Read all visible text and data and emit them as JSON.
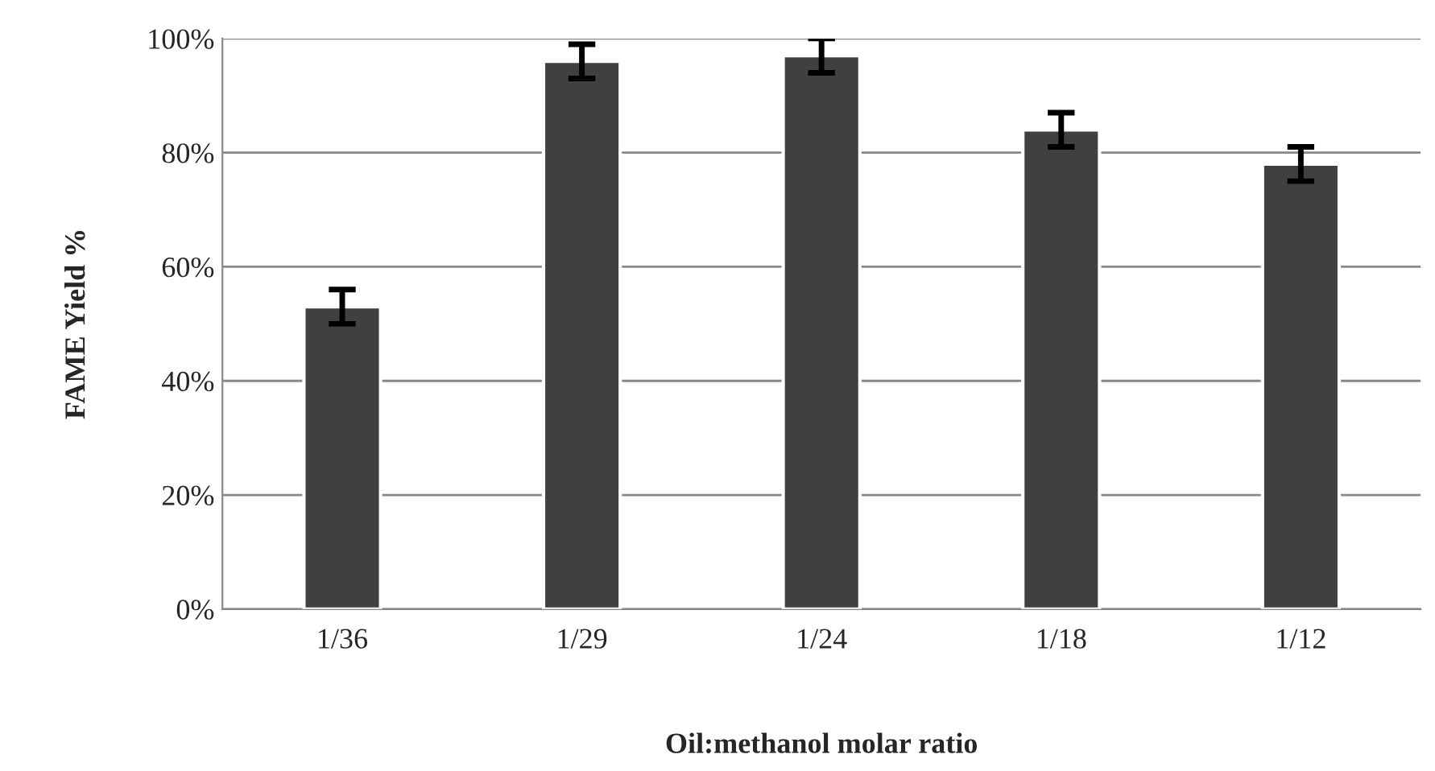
{
  "chart_data": {
    "type": "bar",
    "xlabel": "Oil:methanol molar ratio",
    "ylabel": "FAME Yield %",
    "categories": [
      "1/36",
      "1/29",
      "1/24",
      "1/18",
      "1/12"
    ],
    "values": [
      53,
      96,
      97,
      84,
      78
    ],
    "errors": [
      3,
      3,
      3,
      3,
      3
    ],
    "color": "#404040",
    "ylim": [
      0,
      100
    ],
    "yticks": [
      {
        "value": 0,
        "label": "0%"
      },
      {
        "value": 20,
        "label": "20%"
      },
      {
        "value": 40,
        "label": "40%"
      },
      {
        "value": 60,
        "label": "60%"
      },
      {
        "value": 80,
        "label": "80%"
      },
      {
        "value": 100,
        "label": "100%"
      }
    ],
    "grid": "y",
    "legend": false
  }
}
